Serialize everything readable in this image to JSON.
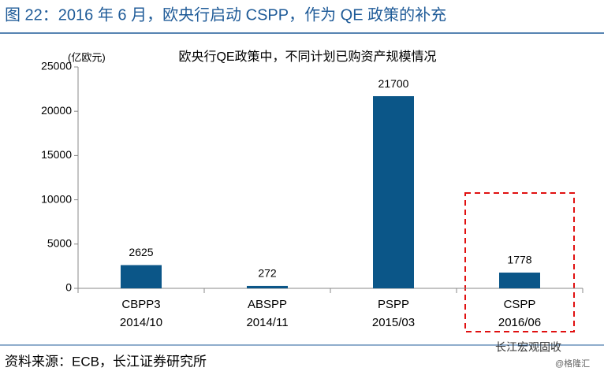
{
  "header": {
    "title": "图 22：2016 年 6 月，欧央行启动 CSPP，作为 QE 政策的补充"
  },
  "chart_data": {
    "type": "bar",
    "title": "欧央行QE政策中，不同计划已购资产规模情况",
    "y_label": "(亿欧元)",
    "categories": [
      [
        "CBPP3",
        "2014/10"
      ],
      [
        "ABSPP",
        "2014/11"
      ],
      [
        "PSPP",
        "2015/03"
      ],
      [
        "CSPP",
        "2016/06"
      ]
    ],
    "values": [
      2625,
      272,
      21700,
      1778
    ],
    "color": "#0b5688",
    "ylim": [
      0,
      25000
    ],
    "yticks": [
      0,
      5000,
      10000,
      15000,
      20000,
      25000
    ],
    "grid": false
  },
  "footer": {
    "source": "资料来源：ECB，长江证券研究所",
    "watermark": "长江宏观固收",
    "watermark_sub": "@格隆汇"
  }
}
